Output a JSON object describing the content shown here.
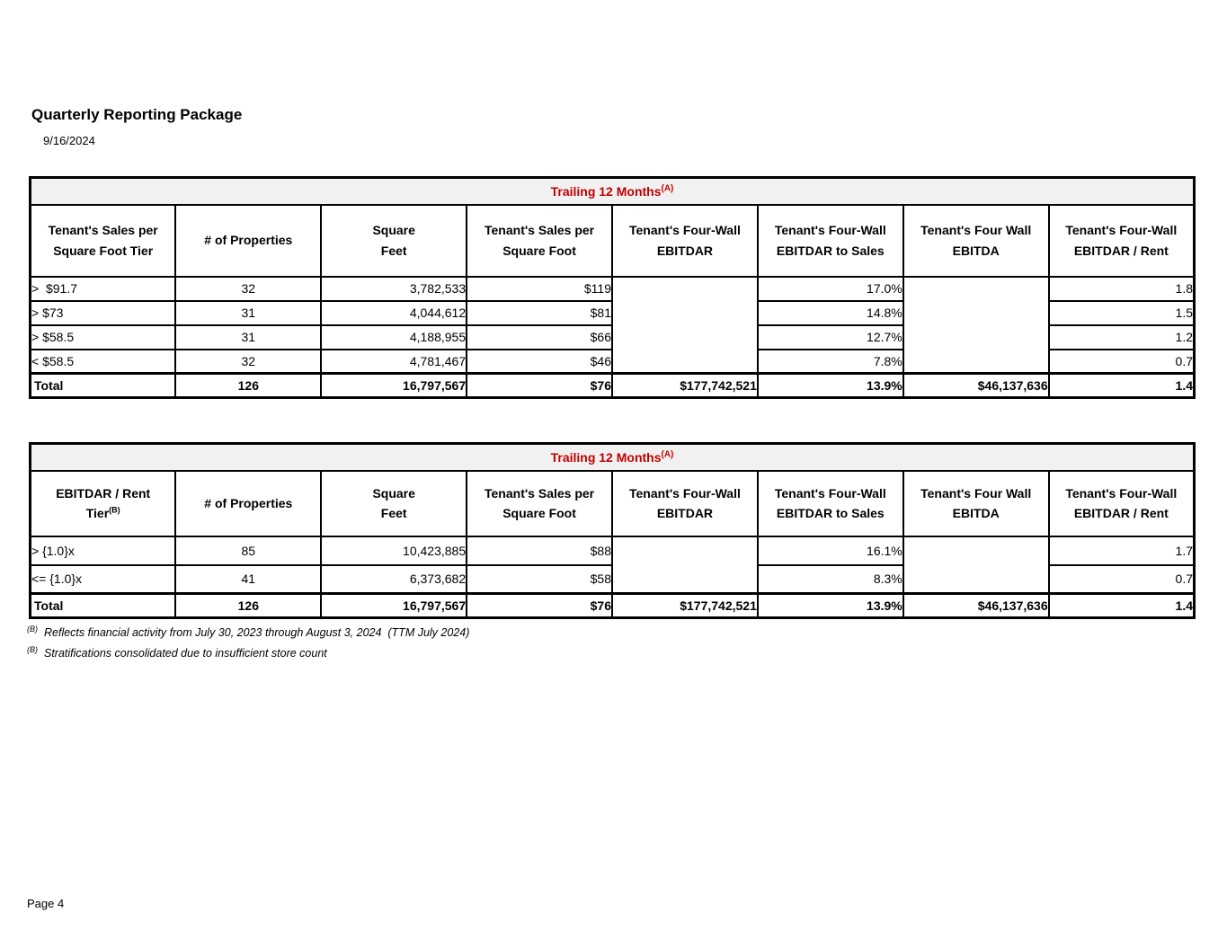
{
  "page": {
    "title": "Quarterly Reporting Package",
    "date": "9/16/2024",
    "footer": "Page 4"
  },
  "colors": {
    "accent_red": "#C00000",
    "banner_gray": "#F1F1F1",
    "border_black": "#000000"
  },
  "tables": [
    {
      "banner": "Trailing 12 Months",
      "banner_sup": "(A)",
      "headers": [
        {
          "line1": "Tenant's Sales per",
          "line2": "Square Foot Tier"
        },
        {
          "line1": "# of Properties"
        },
        {
          "line1": "Square",
          "line2": "Feet"
        },
        {
          "line1": "Tenant's Sales per",
          "line2": "Square Foot"
        },
        {
          "line1": "Tenant's Four-Wall",
          "line2": "EBITDAR"
        },
        {
          "line1": "Tenant's Four-Wall",
          "line2": "EBITDAR to Sales"
        },
        {
          "line1": "Tenant's Four Wall",
          "line2": "EBITDA"
        },
        {
          "line1": "Tenant's Four-Wall",
          "line2": "EBITDAR / Rent"
        }
      ],
      "rows": [
        {
          "tier": ">  $91.7",
          "props": "32",
          "sqft": "3,782,533",
          "spsf": "$119",
          "pct": "17.0%",
          "ratio": "1.8"
        },
        {
          "tier": "> $73",
          "props": "31",
          "sqft": "4,044,612",
          "spsf": "$81",
          "pct": "14.8%",
          "ratio": "1.5"
        },
        {
          "tier": "> $58.5",
          "props": "31",
          "sqft": "4,188,955",
          "spsf": "$66",
          "pct": "12.7%",
          "ratio": "1.2"
        },
        {
          "tier": "< $58.5",
          "props": "32",
          "sqft": "4,781,467",
          "spsf": "$46",
          "pct": "7.8%",
          "ratio": "0.7"
        }
      ],
      "total": {
        "label": "Total",
        "props": "126",
        "sqft": "16,797,567",
        "spsf": "$76",
        "ebitdar": "$177,742,521",
        "pct": "13.9%",
        "ebitda": "$46,137,636",
        "ratio": "1.4"
      }
    },
    {
      "banner": "Trailing 12 Months",
      "banner_sup": "(A)",
      "headers": [
        {
          "line1": "EBITDAR / Rent",
          "line2": "Tier",
          "sup": "(B)"
        },
        {
          "line1": "# of Properties"
        },
        {
          "line1": "Square",
          "line2": "Feet"
        },
        {
          "line1": "Tenant's Sales per",
          "line2": "Square Foot"
        },
        {
          "line1": "Tenant's Four-Wall",
          "line2": "EBITDAR"
        },
        {
          "line1": "Tenant's Four-Wall",
          "line2": "EBITDAR to Sales"
        },
        {
          "line1": "Tenant's Four Wall",
          "line2": "EBITDA"
        },
        {
          "line1": "Tenant's Four-Wall",
          "line2": "EBITDAR / Rent"
        }
      ],
      "rows": [
        {
          "tier": "> {1.0}x",
          "props": "85",
          "sqft": "10,423,885",
          "spsf": "$88",
          "pct": "16.1%",
          "ratio": "1.7"
        },
        {
          "tier": "<= {1.0}x",
          "props": "41",
          "sqft": "6,373,682",
          "spsf": "$58",
          "pct": "8.3%",
          "ratio": "0.7"
        }
      ],
      "total": {
        "label": "Total",
        "props": "126",
        "sqft": "16,797,567",
        "spsf": "$76",
        "ebitdar": "$177,742,521",
        "pct": "13.9%",
        "ebitda": "$46,137,636",
        "ratio": "1.4"
      }
    }
  ],
  "footnotes": [
    {
      "sup": "(B)",
      "text": "Reflects financial activity from July 30, 2023 through August 3, 2024  (TTM July 2024)"
    },
    {
      "sup": "(B)",
      "text": "Stratifications consolidated due to insufficient store count"
    }
  ]
}
